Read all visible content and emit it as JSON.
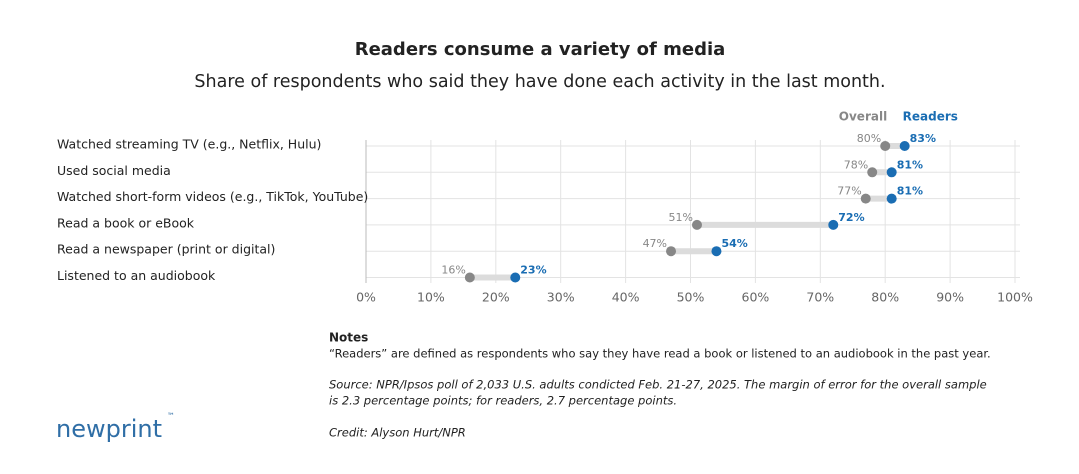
{
  "chart_data": {
    "type": "dumbbell",
    "title": "Readers consume a variety of media",
    "subtitle": "Share of respondents who said they have done each activity in the last month.",
    "categories": [
      "Watched streaming TV (e.g., Netflix, Hulu)",
      "Used social media",
      "Watched short-form videos (e.g., TikTok, YouTube)",
      "Read a book or eBook",
      "Read a newspaper (print or digital)",
      "Listened to an audiobook"
    ],
    "series": [
      {
        "name": "Overall",
        "color": "#878787",
        "values": [
          80,
          78,
          77,
          51,
          47,
          16
        ],
        "value_labels": [
          "80%",
          "78%",
          "77%",
          "51%",
          "47%",
          "16%"
        ]
      },
      {
        "name": "Readers",
        "color": "#1a6db3",
        "values": [
          83,
          81,
          81,
          72,
          54,
          23
        ],
        "value_labels": [
          "83%",
          "81%",
          "81%",
          "72%",
          "54%",
          "23%"
        ]
      }
    ],
    "xlim": [
      0,
      100
    ],
    "xticks": [
      {
        "value": 0,
        "label": "0%"
      },
      {
        "value": 10,
        "label": "10%"
      },
      {
        "value": 20,
        "label": "20%"
      },
      {
        "value": 30,
        "label": "30%"
      },
      {
        "value": 40,
        "label": "40%"
      },
      {
        "value": 50,
        "label": "50%"
      },
      {
        "value": 60,
        "label": "60%"
      },
      {
        "value": 70,
        "label": "70%"
      },
      {
        "value": 80,
        "label": "80%"
      },
      {
        "value": 90,
        "label": "90%"
      },
      {
        "value": 100,
        "label": "100%"
      }
    ],
    "grid": true
  },
  "notes": {
    "heading": "Notes",
    "definition": "“Readers” are defined as respondents who say they have read a book or listened to an audiobook in the past year.",
    "source": [
      "Source: NPR/Ipsos poll of 2,033 U.S. adults condicted Feb. 21-27, 2025. The margin of error for the overall sample",
      "is 2.3 percentage points; for readers, 2.7 percentage points."
    ],
    "credit": "Credit: Alyson Hurt/NPR"
  },
  "logo": {
    "name": "newprint",
    "mark": "™"
  }
}
